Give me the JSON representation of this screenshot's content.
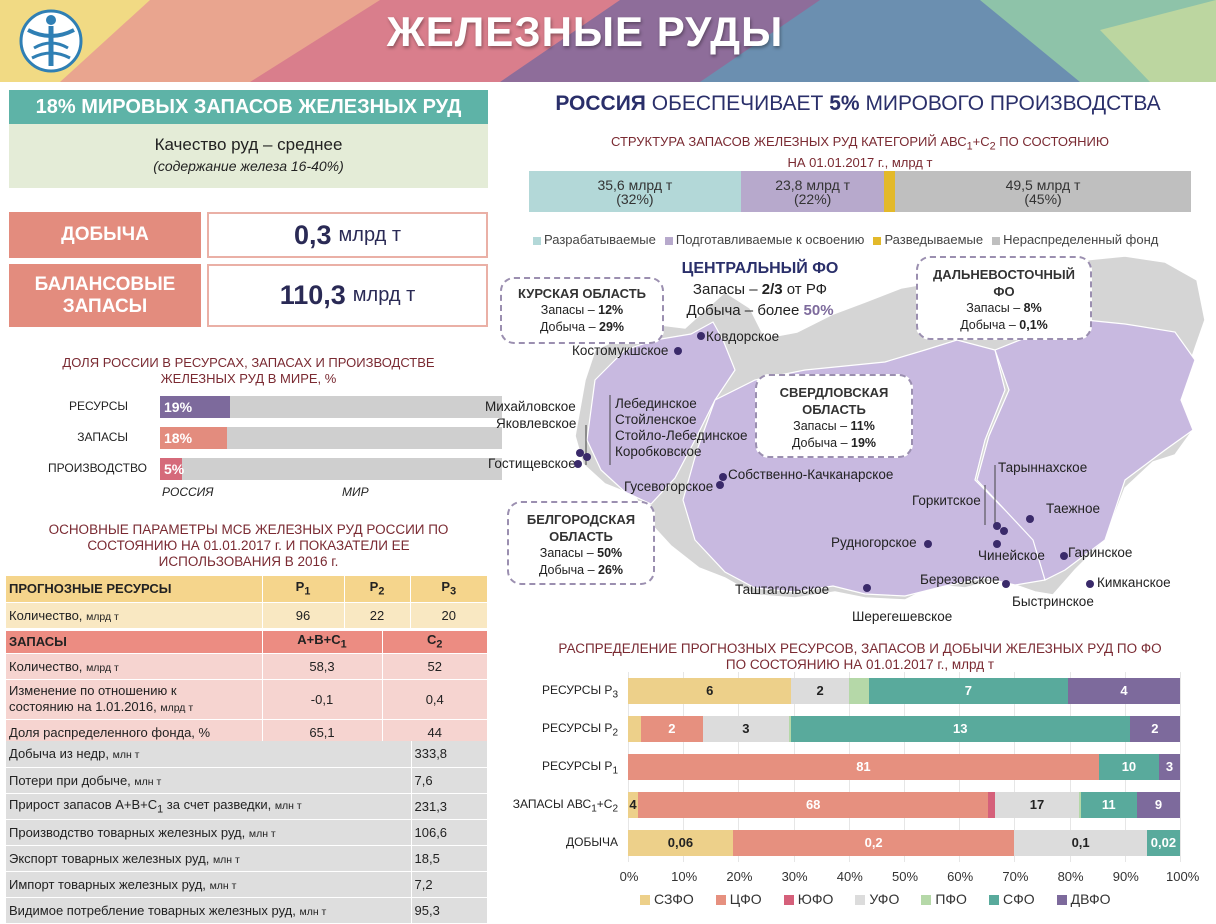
{
  "title": "ЖЕЛЕЗНЫЕ РУДЫ",
  "left": {
    "header": "18% МИРОВЫХ ЗАПАСОВ ЖЕЛЕЗНЫХ РУД",
    "quality_line": "Качество руд – среднее",
    "quality_sub": "(содержание железа 16-40%)",
    "mining_label": "ДОБЫЧА",
    "mining_value": "0,3",
    "mining_unit": "млрд т",
    "reserves_label_1": "БАЛАНСОВЫЕ",
    "reserves_label_2": "ЗАПАСЫ",
    "reserves_value": "110,3",
    "reserves_unit": "млрд т",
    "share_title_1": "ДОЛЯ РОССИИ В РЕСУРСАХ, ЗАПАСАХ И ПРОИЗВОДСТВЕ",
    "share_title_2": "ЖЕЛЕЗНЫХ РУД В МИРЕ, %",
    "share": [
      {
        "label": "РЕСУРСЫ",
        "value": 19,
        "text": "19%",
        "color": "#7d6a9c"
      },
      {
        "label": "ЗАПАСЫ",
        "value": 18,
        "text": "18%",
        "color": "#e38c7e"
      },
      {
        "label": "ПРОИЗВОДСТВО",
        "value": 5,
        "text": "5%",
        "color": "#d56a7a"
      }
    ],
    "share_legend_russia": "РОССИЯ",
    "share_legend_world": "МИР",
    "params_title_1": "ОСНОВНЫЕ ПАРАМЕТРЫ МСБ ЖЕЛЕЗНЫХ РУД РОССИИ ПО",
    "params_title_2": "СОСТОЯНИЮ НА 01.01.2017 г. И ПОКАЗАТЕЛИ ЕЕ",
    "params_title_3": "ИСПОЛЬЗОВАНИЯ В 2016 г.",
    "res_head": "ПРОГНОЗНЫЕ РЕСУРСЫ",
    "p1": "P",
    "p2": "P",
    "p3": "P",
    "s1": "1",
    "s2": "2",
    "s3": "3",
    "res_qty_label": "Количество,",
    "res_qty_unit": "млрд т",
    "res_p1": "96",
    "res_p2": "22",
    "res_p3": "20",
    "zap_head": "ЗАПАСЫ",
    "zap_col1": "A+B+C",
    "zap_col1_sub": "1",
    "zap_col2": "C",
    "zap_col2_sub": "2",
    "zap_qty_label": "Количество,",
    "zap_qty_unit": "млрд т",
    "zap_qty_1": "58,3",
    "zap_qty_2": "52",
    "zap_change_1": "Изменение по отношению к",
    "zap_change_2": "состоянию на 1.01.2016,",
    "zap_change_unit": "млрд т",
    "zap_change_v1": "-0,1",
    "zap_change_v2": "0,4",
    "zap_fund_label": "Доля распределенного фонда, %",
    "zap_fund_1": "65,1",
    "zap_fund_2": "44",
    "stats": [
      {
        "label": "Добыча из недр,",
        "unit": "млн т",
        "value": "333,8"
      },
      {
        "label": "Потери при добыче,",
        "unit": "млн т",
        "value": "7,6"
      },
      {
        "label": "Прирост запасов А+В+С",
        "sub": "1",
        "label2": " за счет разведки,",
        "unit": "млн т",
        "value": "231,3"
      },
      {
        "label": "Производство товарных железных руд,",
        "unit": "млн т",
        "value": "106,6"
      },
      {
        "label": "Экспорт товарных железных руд,",
        "unit": "млн т",
        "value": "18,5"
      },
      {
        "label": "Импорт товарных железных руд,",
        "unit": "млн т",
        "value": "7,2"
      },
      {
        "label": "Видимое потребление товарных железных руд,",
        "unit": "млн т",
        "value": "95,3"
      }
    ]
  },
  "right": {
    "headline_bold1": "РОССИЯ",
    "headline_mid": "ОБЕСПЕЧИВАЕТ",
    "headline_bold2": "5%",
    "headline_end": "МИРОВОГО ПРОИЗВОДСТВА",
    "struct_title_1": "СТРУКТУРА ЗАПАСОВ ЖЕЛЕЗНЫХ РУД КАТЕГОРИЙ АВС",
    "struct_sub1": "1",
    "struct_plus": "+С",
    "struct_sub2": "2",
    "struct_title_tail": " ПО СОСТОЯНИЮ",
    "struct_title_2": "НА 01.01.2017 г., млрд т",
    "struct": [
      {
        "v": "35,6 млрд т",
        "p": "(32%)",
        "share": 32,
        "color": "#b3d8d8"
      },
      {
        "v": "23,8 млрд т",
        "p": "(22%)",
        "share": 21.7,
        "color": "#b7a9cc"
      },
      {
        "v": "",
        "p": "",
        "share": 1.6,
        "color": "#e3b92a"
      },
      {
        "v": "49,5 млрд т",
        "p": "(45%)",
        "share": 44.7,
        "color": "#bfbfbf"
      }
    ],
    "struct_legend": [
      {
        "t": "Разрабатываемые",
        "c": "#b3d8d8"
      },
      {
        "t": "Подготавливаемые к освоению",
        "c": "#b7a9cc"
      },
      {
        "t": "Разведываемые",
        "c": "#e3b92a"
      },
      {
        "t": "Нераспределенный фонд",
        "c": "#bfbfbf"
      }
    ],
    "map": {
      "kursk": {
        "t": "КУРСКАЯ ОБЛАСТЬ",
        "l1": "Запасы – ",
        "v1": "12%",
        "l2": "Добыча – ",
        "v2": "29%"
      },
      "cfo": {
        "t": "ЦЕНТРАЛЬНЫЙ ФО",
        "l1": "Запасы – ",
        "v1": "2/3",
        "l1b": " от РФ",
        "l2": "Добыча – более ",
        "v2": "50%"
      },
      "far": {
        "t1": "ДАЛЬНЕВОСТОЧНЫЙ",
        "t2": "ФО",
        "l1": "Запасы – ",
        "v1": "8%",
        "l2": "Добыча – ",
        "v2": "0,1%"
      },
      "sverd": {
        "t1": "СВЕРДЛОВСКАЯ",
        "t2": "ОБЛАСТЬ",
        "l1": "Запасы – ",
        "v1": "11%",
        "l2": "Добыча – ",
        "v2": "19%"
      },
      "belg": {
        "t1": "БЕЛГОРОДСКАЯ",
        "t2": "ОБЛАСТЬ",
        "l1": "Запасы – ",
        "v1": "50%",
        "l2": "Добыча – ",
        "v2": "26%"
      },
      "cities": {
        "kostom": "Костомукшское",
        "kovd": "Ковдорское",
        "mikh": "Михайловское",
        "yakov": "Яковлевское",
        "lebed": "Лебединское",
        "stoil": "Стойленское",
        "stoil_leb": "Стойло-Лебединское",
        "korob": "Коробковское",
        "gost": "Гостищевское",
        "gusev": "Гусевогорское",
        "kach": "Собственно-Качканарское",
        "tar": "Тарыннахское",
        "gork": "Горкитское",
        "taezh": "Таежное",
        "rud": "Рудногорское",
        "chin": "Чинейское",
        "garin": "Гаринское",
        "berez": "Березовское",
        "kimk": "Кимканское",
        "tasht": "Таштагольское",
        "byst": "Быстринское",
        "sher": "Шерегешевское"
      }
    },
    "dist_title_1": "РАСПРЕДЕЛЕНИЕ ПРОГНОЗНЫХ РЕСУРСОВ, ЗАПАСОВ И ДОБЫЧИ ЖЕЛЕЗНЫХ РУД ПО ФО",
    "dist_title_2": "ПО СОСТОЯНИЮ НА 01.01.2017 г., млрд т"
  },
  "chart_data": {
    "type": "bar",
    "orientation": "horizontal-stacked-100",
    "categories": [
      "РЕСУРСЫ P3",
      "РЕСУРСЫ P2",
      "РЕСУРСЫ P1",
      "ЗАПАСЫ АВС1+С2",
      "ДОБЫЧА"
    ],
    "category_labels": [
      {
        "main": "РЕСУРСЫ P",
        "sub": "3"
      },
      {
        "main": "РЕСУРСЫ P",
        "sub": "2"
      },
      {
        "main": "РЕСУРСЫ P",
        "sub": "1"
      },
      {
        "main": "ЗАПАСЫ АВС",
        "sub": "1",
        "tail": "+С",
        "sub2": "2"
      },
      {
        "main": "ДОБЫЧА"
      }
    ],
    "series": [
      {
        "name": "СЗФО",
        "color": "#edd08a",
        "shares": [
          29.6,
          2.3,
          0,
          1.8,
          19
        ],
        "labels": [
          "6",
          "",
          "",
          "4",
          "0,06"
        ]
      },
      {
        "name": "ЦФО",
        "color": "#e6907f",
        "shares": [
          0,
          11.3,
          85.3,
          63.5,
          51
        ],
        "labels": [
          "",
          "2",
          "81",
          "68",
          "0,2"
        ]
      },
      {
        "name": "ЮФО",
        "color": "#d5607a",
        "shares": [
          0,
          0,
          0,
          1.2,
          0
        ],
        "labels": [
          "",
          "",
          "",
          "",
          ""
        ]
      },
      {
        "name": "УФО",
        "color": "#dcdcdc",
        "shares": [
          10.4,
          15.5,
          0,
          15.2,
          24
        ],
        "labels": [
          "2",
          "3",
          "",
          "17",
          "0,1"
        ]
      },
      {
        "name": "ПФО",
        "color": "#b5d8a8",
        "shares": [
          3.6,
          0.4,
          0,
          0.3,
          0
        ],
        "labels": [
          "",
          "",
          "",
          "",
          ""
        ]
      },
      {
        "name": "СФО",
        "color": "#59aa9c",
        "shares": [
          36.1,
          61.4,
          10.9,
          10.2,
          6
        ],
        "labels": [
          "7",
          "13",
          "10",
          "11",
          "0,02"
        ]
      },
      {
        "name": "ДВФО",
        "color": "#7d6a9c",
        "shares": [
          20.3,
          9.1,
          3.8,
          7.8,
          0
        ],
        "labels": [
          "4",
          "2",
          "3",
          "9",
          ""
        ]
      }
    ],
    "xlim": [
      0,
      100
    ],
    "xticks": [
      "0%",
      "10%",
      "20%",
      "30%",
      "40%",
      "50%",
      "60%",
      "70%",
      "80%",
      "90%",
      "100%"
    ]
  }
}
